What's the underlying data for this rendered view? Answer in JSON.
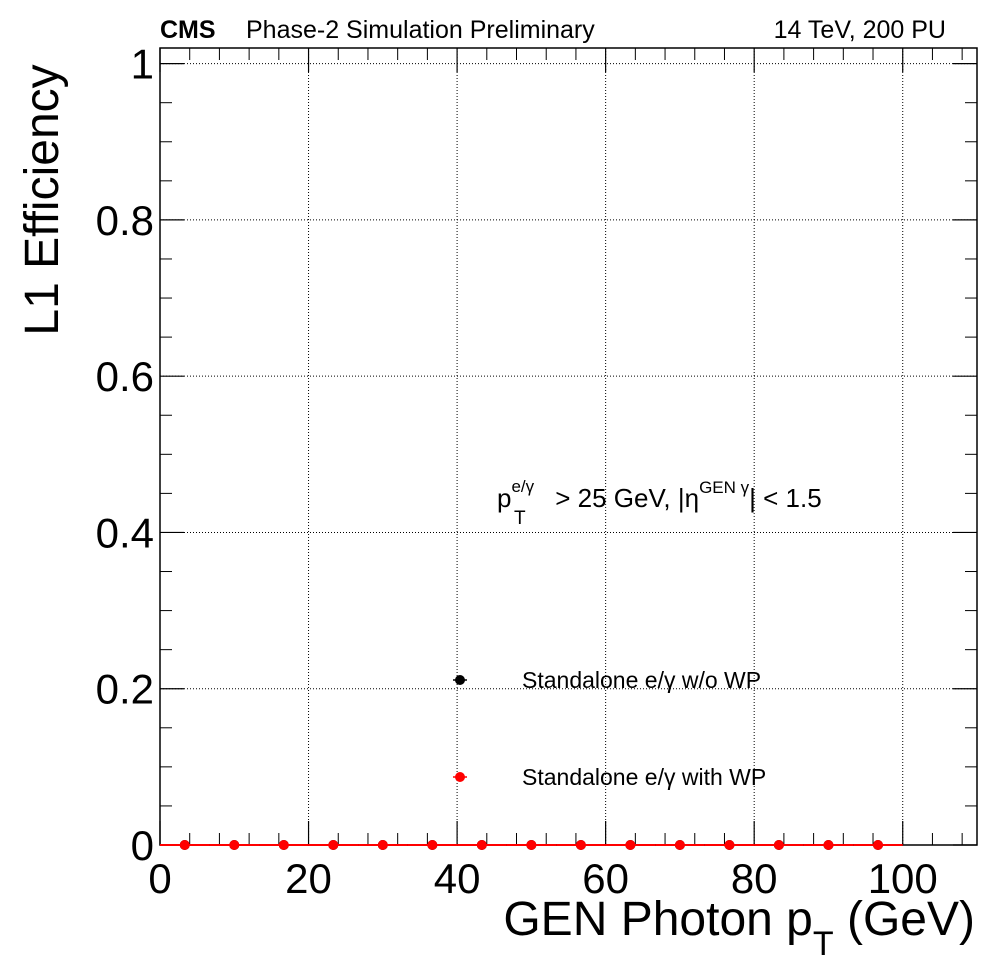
{
  "header": {
    "experiment": "CMS",
    "status": "Phase-2 Simulation Preliminary",
    "conditions": "14 TeV, 200 PU"
  },
  "annotation": {
    "p": "p",
    "p_sup": "e/γ",
    "p_sub": "T",
    "mid": " > 25 GeV, |η",
    "eta_sup": "GEN γ",
    "end": "| < 1.5"
  },
  "axis_labels": {
    "y": "L1 Efficiency",
    "x_main": "GEN Photon p",
    "x_sub": "T",
    "x_unit": " (GeV)"
  },
  "chart_data": {
    "type": "scatter",
    "title": "",
    "xlabel": "GEN Photon p_T (GeV)",
    "ylabel": "L1 Efficiency",
    "xlim": [
      0,
      110
    ],
    "ylim": [
      0,
      1.02
    ],
    "x_ticks": [
      0,
      20,
      40,
      60,
      80,
      100
    ],
    "y_ticks": [
      0,
      0.2,
      0.4,
      0.6,
      0.8,
      1
    ],
    "x_tick_labels": [
      "0",
      "20",
      "40",
      "60",
      "80",
      "100"
    ],
    "y_tick_labels": [
      "0",
      "0.2",
      "0.4",
      "0.6",
      "0.8",
      "1"
    ],
    "grid": true,
    "legend_position": "bottom-center",
    "series": [
      {
        "name": "Standalone e/γ w/o WP",
        "color": "#000000",
        "x": [
          3.33,
          10,
          16.67,
          23.33,
          30,
          36.67,
          43.33,
          50,
          56.67,
          63.33,
          70,
          76.67,
          83.33,
          90,
          96.67
        ],
        "values": [
          0,
          0,
          0,
          0,
          0,
          0,
          0,
          0,
          0,
          0,
          0,
          0,
          0,
          0,
          0
        ],
        "bin_half_width": 3.33
      },
      {
        "name": "Standalone e/γ with WP",
        "color": "#ff0000",
        "x": [
          3.33,
          10,
          16.67,
          23.33,
          30,
          36.67,
          43.33,
          50,
          56.67,
          63.33,
          70,
          76.67,
          83.33,
          90,
          96.67
        ],
        "values": [
          0,
          0,
          0,
          0,
          0,
          0,
          0,
          0,
          0,
          0,
          0,
          0,
          0,
          0,
          0
        ],
        "bin_half_width": 3.33
      }
    ]
  }
}
